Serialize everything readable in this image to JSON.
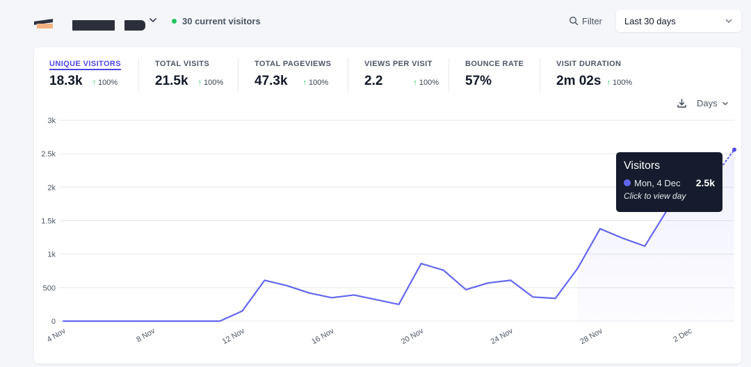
{
  "header": {
    "current_visitors": "30 current visitors",
    "filter_label": "Filter",
    "period": {
      "selected": "Last 30 days"
    }
  },
  "colors": {
    "accent": "#4f46e5",
    "line": "#6366f1",
    "positive": "#22c55e",
    "tooltip_bg": "#161c2d"
  },
  "metrics": [
    {
      "label": "UNIQUE VISITORS",
      "value": "18.3k",
      "change": "100%",
      "trend": "up",
      "active": true
    },
    {
      "label": "TOTAL VISITS",
      "value": "21.5k",
      "change": "100%",
      "trend": "up"
    },
    {
      "label": "TOTAL PAGEVIEWS",
      "value": "47.3k",
      "change": "100%",
      "trend": "up"
    },
    {
      "label": "VIEWS PER VISIT",
      "value": "2.2",
      "change": "100%",
      "trend": "up"
    },
    {
      "label": "BOUNCE RATE",
      "value": "57%"
    },
    {
      "label": "VISIT DURATION",
      "value": "2m 02s",
      "change": "100%",
      "trend": "up"
    }
  ],
  "interval": {
    "selected": "Days"
  },
  "tooltip": {
    "title": "Visitors",
    "date": "Mon, 4 Dec",
    "value": "2.5k",
    "hint": "Click to view day"
  },
  "chart_data": {
    "type": "line",
    "x": [
      "4 Nov",
      "5 Nov",
      "6 Nov",
      "7 Nov",
      "8 Nov",
      "9 Nov",
      "10 Nov",
      "11 Nov",
      "12 Nov",
      "13 Nov",
      "14 Nov",
      "15 Nov",
      "16 Nov",
      "17 Nov",
      "18 Nov",
      "19 Nov",
      "20 Nov",
      "21 Nov",
      "22 Nov",
      "23 Nov",
      "24 Nov",
      "25 Nov",
      "26 Nov",
      "27 Nov",
      "28 Nov",
      "29 Nov",
      "30 Nov",
      "1 Dec",
      "2 Dec",
      "3 Dec",
      "4 Dec"
    ],
    "series": [
      {
        "name": "Visitors",
        "values": [
          0,
          0,
          0,
          0,
          0,
          0,
          0,
          0,
          150,
          610,
          530,
          420,
          350,
          390,
          320,
          250,
          860,
          760,
          470,
          570,
          610,
          360,
          340,
          790,
          1380,
          1240,
          1120,
          1660,
          2010,
          2110,
          2560
        ],
        "dotted_from": "3 Dec"
      }
    ],
    "xticks": [
      "4 Nov",
      "8 Nov",
      "12 Nov",
      "16 Nov",
      "20 Nov",
      "24 Nov",
      "28 Nov",
      "2 Dec"
    ],
    "yticks": [
      0,
      500,
      1000,
      1500,
      2000,
      2500,
      3000
    ],
    "ytick_labels": [
      "0",
      "500",
      "1k",
      "1.5k",
      "2k",
      "2.5k",
      "3k"
    ],
    "ylim": [
      0,
      3000
    ],
    "grid": true,
    "legend": "none"
  }
}
